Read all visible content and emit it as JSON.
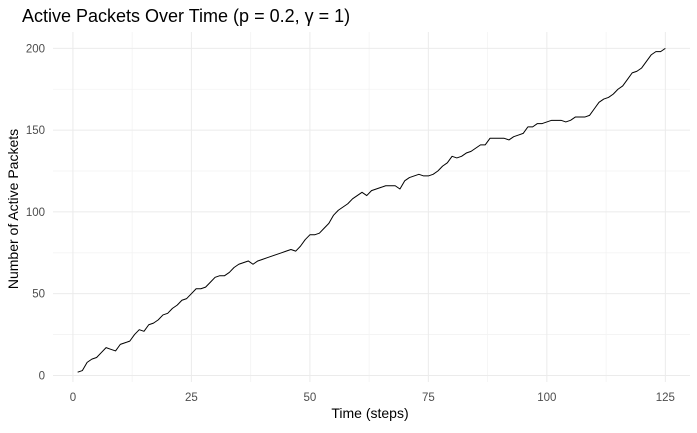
{
  "chart_data": {
    "type": "line",
    "title": "Active Packets Over Time (p = 0.2, γ = 1)",
    "xlabel": "Time (steps)",
    "ylabel": "Number of Active Packets",
    "xlim": [
      -4.2,
      130.2
    ],
    "ylim": [
      -4,
      210
    ],
    "xticks": [
      0,
      25,
      50,
      75,
      100,
      125
    ],
    "yticks": [
      0,
      50,
      100,
      150,
      200
    ],
    "grid": true,
    "series": [
      {
        "color": "#000000",
        "x": [
          1,
          2,
          3,
          4,
          5,
          6,
          7,
          8,
          9,
          10,
          11,
          12,
          13,
          14,
          15,
          16,
          17,
          18,
          19,
          20,
          21,
          22,
          23,
          24,
          25,
          26,
          27,
          28,
          29,
          30,
          31,
          32,
          33,
          34,
          35,
          36,
          37,
          38,
          39,
          40,
          41,
          42,
          43,
          44,
          45,
          46,
          47,
          48,
          49,
          50,
          51,
          52,
          53,
          54,
          55,
          56,
          57,
          58,
          59,
          60,
          61,
          62,
          63,
          64,
          65,
          66,
          67,
          68,
          69,
          70,
          71,
          72,
          73,
          74,
          75,
          76,
          77,
          78,
          79,
          80,
          81,
          82,
          83,
          84,
          85,
          86,
          87,
          88,
          89,
          90,
          91,
          92,
          93,
          94,
          95,
          96,
          97,
          98,
          99,
          100,
          101,
          102,
          103,
          104,
          105,
          106,
          107,
          108,
          109,
          110,
          111,
          112,
          113,
          114,
          115,
          116,
          117,
          118,
          119,
          120,
          121,
          122,
          123,
          124,
          125
        ],
        "y": [
          2,
          3,
          8,
          10,
          11,
          14,
          17,
          16,
          15,
          19,
          20,
          21,
          25,
          28,
          27,
          31,
          32,
          34,
          37,
          38,
          41,
          43,
          46,
          47,
          50,
          53,
          53,
          54,
          57,
          60,
          61,
          61,
          63,
          66,
          68,
          69,
          70,
          68,
          70,
          71,
          72,
          73,
          74,
          75,
          76,
          77,
          76,
          79,
          83,
          86,
          86,
          87,
          90,
          93,
          98,
          101,
          103,
          105,
          108,
          110,
          112,
          110,
          113,
          114,
          115,
          116,
          116,
          116,
          114,
          119,
          121,
          122,
          123,
          122,
          122,
          123,
          125,
          128,
          130,
          134,
          133,
          134,
          136,
          137,
          139,
          141,
          141,
          145,
          145,
          145,
          145,
          144,
          146,
          147,
          148,
          152,
          152,
          154,
          154,
          155,
          156,
          156,
          156,
          155,
          156,
          158,
          158,
          158,
          159,
          163,
          167,
          169,
          170,
          172,
          175,
          177,
          181,
          185,
          186,
          188,
          192,
          196,
          198,
          198,
          200
        ]
      }
    ]
  }
}
